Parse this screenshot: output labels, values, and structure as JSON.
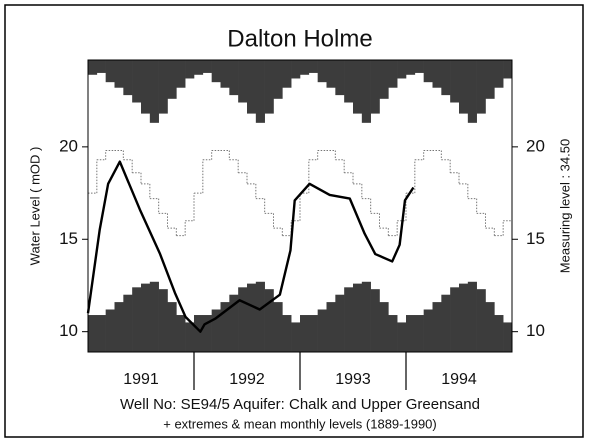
{
  "chart_data": {
    "type": "line",
    "title": "Dalton Holme",
    "footer_lines": [
      "Well No: SE94/5   Aquifer: Chalk and Upper Greensand",
      "+ extremes & mean monthly levels (1889-1990)"
    ],
    "ylabel": "Water Level  ( mOD )",
    "y2label": "Measuring level :  34.50",
    "xlim": [
      1991,
      1995
    ],
    "xticks": [
      {
        "value": 1991.5,
        "label": "1991"
      },
      {
        "value": 1992.5,
        "label": "1992"
      },
      {
        "value": 1993.5,
        "label": "1993"
      },
      {
        "value": 1994.5,
        "label": "1994"
      }
    ],
    "year_boundaries": [
      1992,
      1993,
      1994
    ],
    "ylim": [
      8.9,
      24.7
    ],
    "yticks": [
      10,
      15,
      20
    ],
    "y2lim": [
      8.9,
      24.7
    ],
    "y2ticks": [
      10,
      15,
      20
    ],
    "monthly_max": {
      "color": "#3c3c3c",
      "values": [
        23.9,
        24.0,
        23.5,
        23.2,
        22.8,
        22.4,
        21.8,
        21.3,
        21.8,
        22.6,
        23.2,
        23.7
      ]
    },
    "monthly_min": {
      "color": "#3c3c3c",
      "values": [
        10.9,
        10.9,
        11.2,
        11.6,
        12.0,
        12.4,
        12.6,
        12.7,
        12.3,
        11.6,
        10.9,
        10.5
      ]
    },
    "monthly_mean": {
      "color": "#777777",
      "values": [
        17.5,
        19.3,
        19.8,
        19.8,
        19.3,
        18.6,
        18.0,
        17.2,
        16.4,
        15.6,
        15.2,
        16.0
      ]
    },
    "observed": {
      "color": "#000000",
      "x": [
        1991.0,
        1991.11,
        1991.19,
        1991.3,
        1991.49,
        1991.68,
        1991.82,
        1991.92,
        1992.06,
        1992.1,
        1992.2,
        1992.43,
        1992.62,
        1992.81,
        1992.91,
        1992.95,
        1993.09,
        1993.28,
        1993.47,
        1993.61,
        1993.71,
        1993.87,
        1993.94,
        1993.99,
        1994.07
      ],
      "values": [
        11.0,
        15.5,
        18.0,
        19.2,
        16.6,
        14.2,
        12.1,
        10.8,
        10.0,
        10.4,
        10.7,
        11.7,
        11.2,
        12.0,
        14.4,
        17.1,
        18.0,
        17.4,
        17.2,
        15.3,
        14.2,
        13.8,
        14.7,
        17.1,
        17.8
      ]
    }
  }
}
